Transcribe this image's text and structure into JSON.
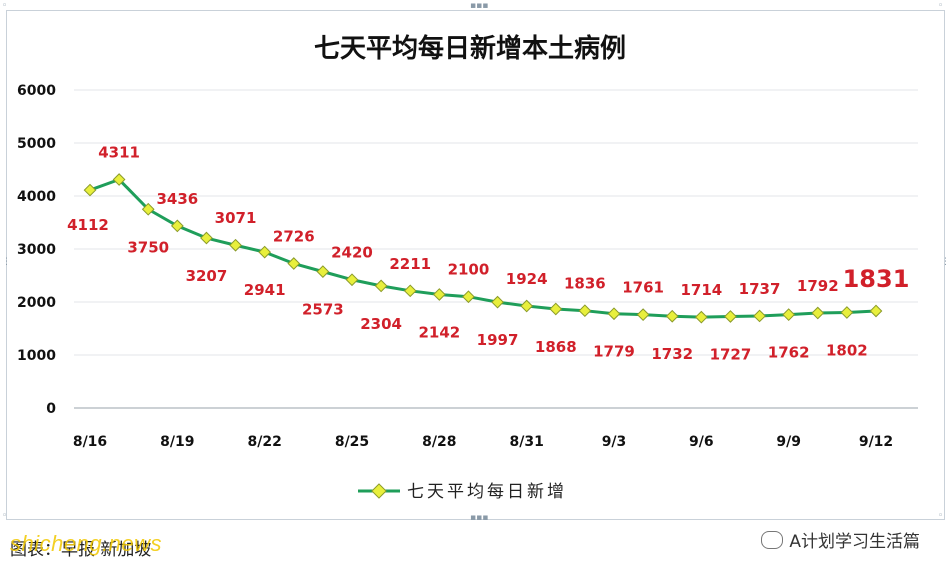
{
  "chart_data": {
    "type": "line",
    "title": "七天平均每日新增本土病例",
    "x": [
      "8/16",
      "8/17",
      "8/18",
      "8/19",
      "8/20",
      "8/21",
      "8/22",
      "8/23",
      "8/24",
      "8/25",
      "8/26",
      "8/27",
      "8/28",
      "8/29",
      "8/30",
      "8/31",
      "9/1",
      "9/2",
      "9/3",
      "9/4",
      "9/5",
      "9/6",
      "9/7",
      "9/8",
      "9/9",
      "9/10",
      "9/11",
      "9/12"
    ],
    "tick_labels": [
      "8/16",
      "8/19",
      "8/22",
      "8/25",
      "8/28",
      "8/31",
      "9/3",
      "9/6",
      "9/9",
      "9/12"
    ],
    "y_ticks": [
      "0",
      "1000",
      "2000",
      "3000",
      "4000",
      "5000",
      "6000"
    ],
    "ylim": [
      0,
      6000
    ],
    "grid": true,
    "legend_position": "bottom-center",
    "series": [
      {
        "name": "七天平均每日新增",
        "color": "#1f9e5a",
        "marker_color": "#e8ef3c",
        "values": [
          4112,
          4311,
          3750,
          3436,
          3207,
          3071,
          2941,
          2726,
          2573,
          2420,
          2304,
          2211,
          2142,
          2100,
          1997,
          1924,
          1868,
          1836,
          1779,
          1761,
          1732,
          1714,
          1727,
          1737,
          1762,
          1792,
          1802,
          1831
        ]
      }
    ],
    "data_labels": [
      "4112",
      "4311",
      "3750",
      "3436",
      "3207",
      "3071",
      "2941",
      "2726",
      "2573",
      "2420",
      "2304",
      "2211",
      "2142",
      "2100",
      "1997",
      "1924",
      "1868",
      "1836",
      "1779",
      "1761",
      "1732",
      "1714",
      "1727",
      "1737",
      "1762",
      "1792",
      "1802",
      "1831"
    ],
    "label_color": "#d1202a"
  },
  "footer": {
    "source": "图表：早报  新加坡",
    "watermark": "shicheng.news",
    "brand": "A计划学习生活篇"
  }
}
